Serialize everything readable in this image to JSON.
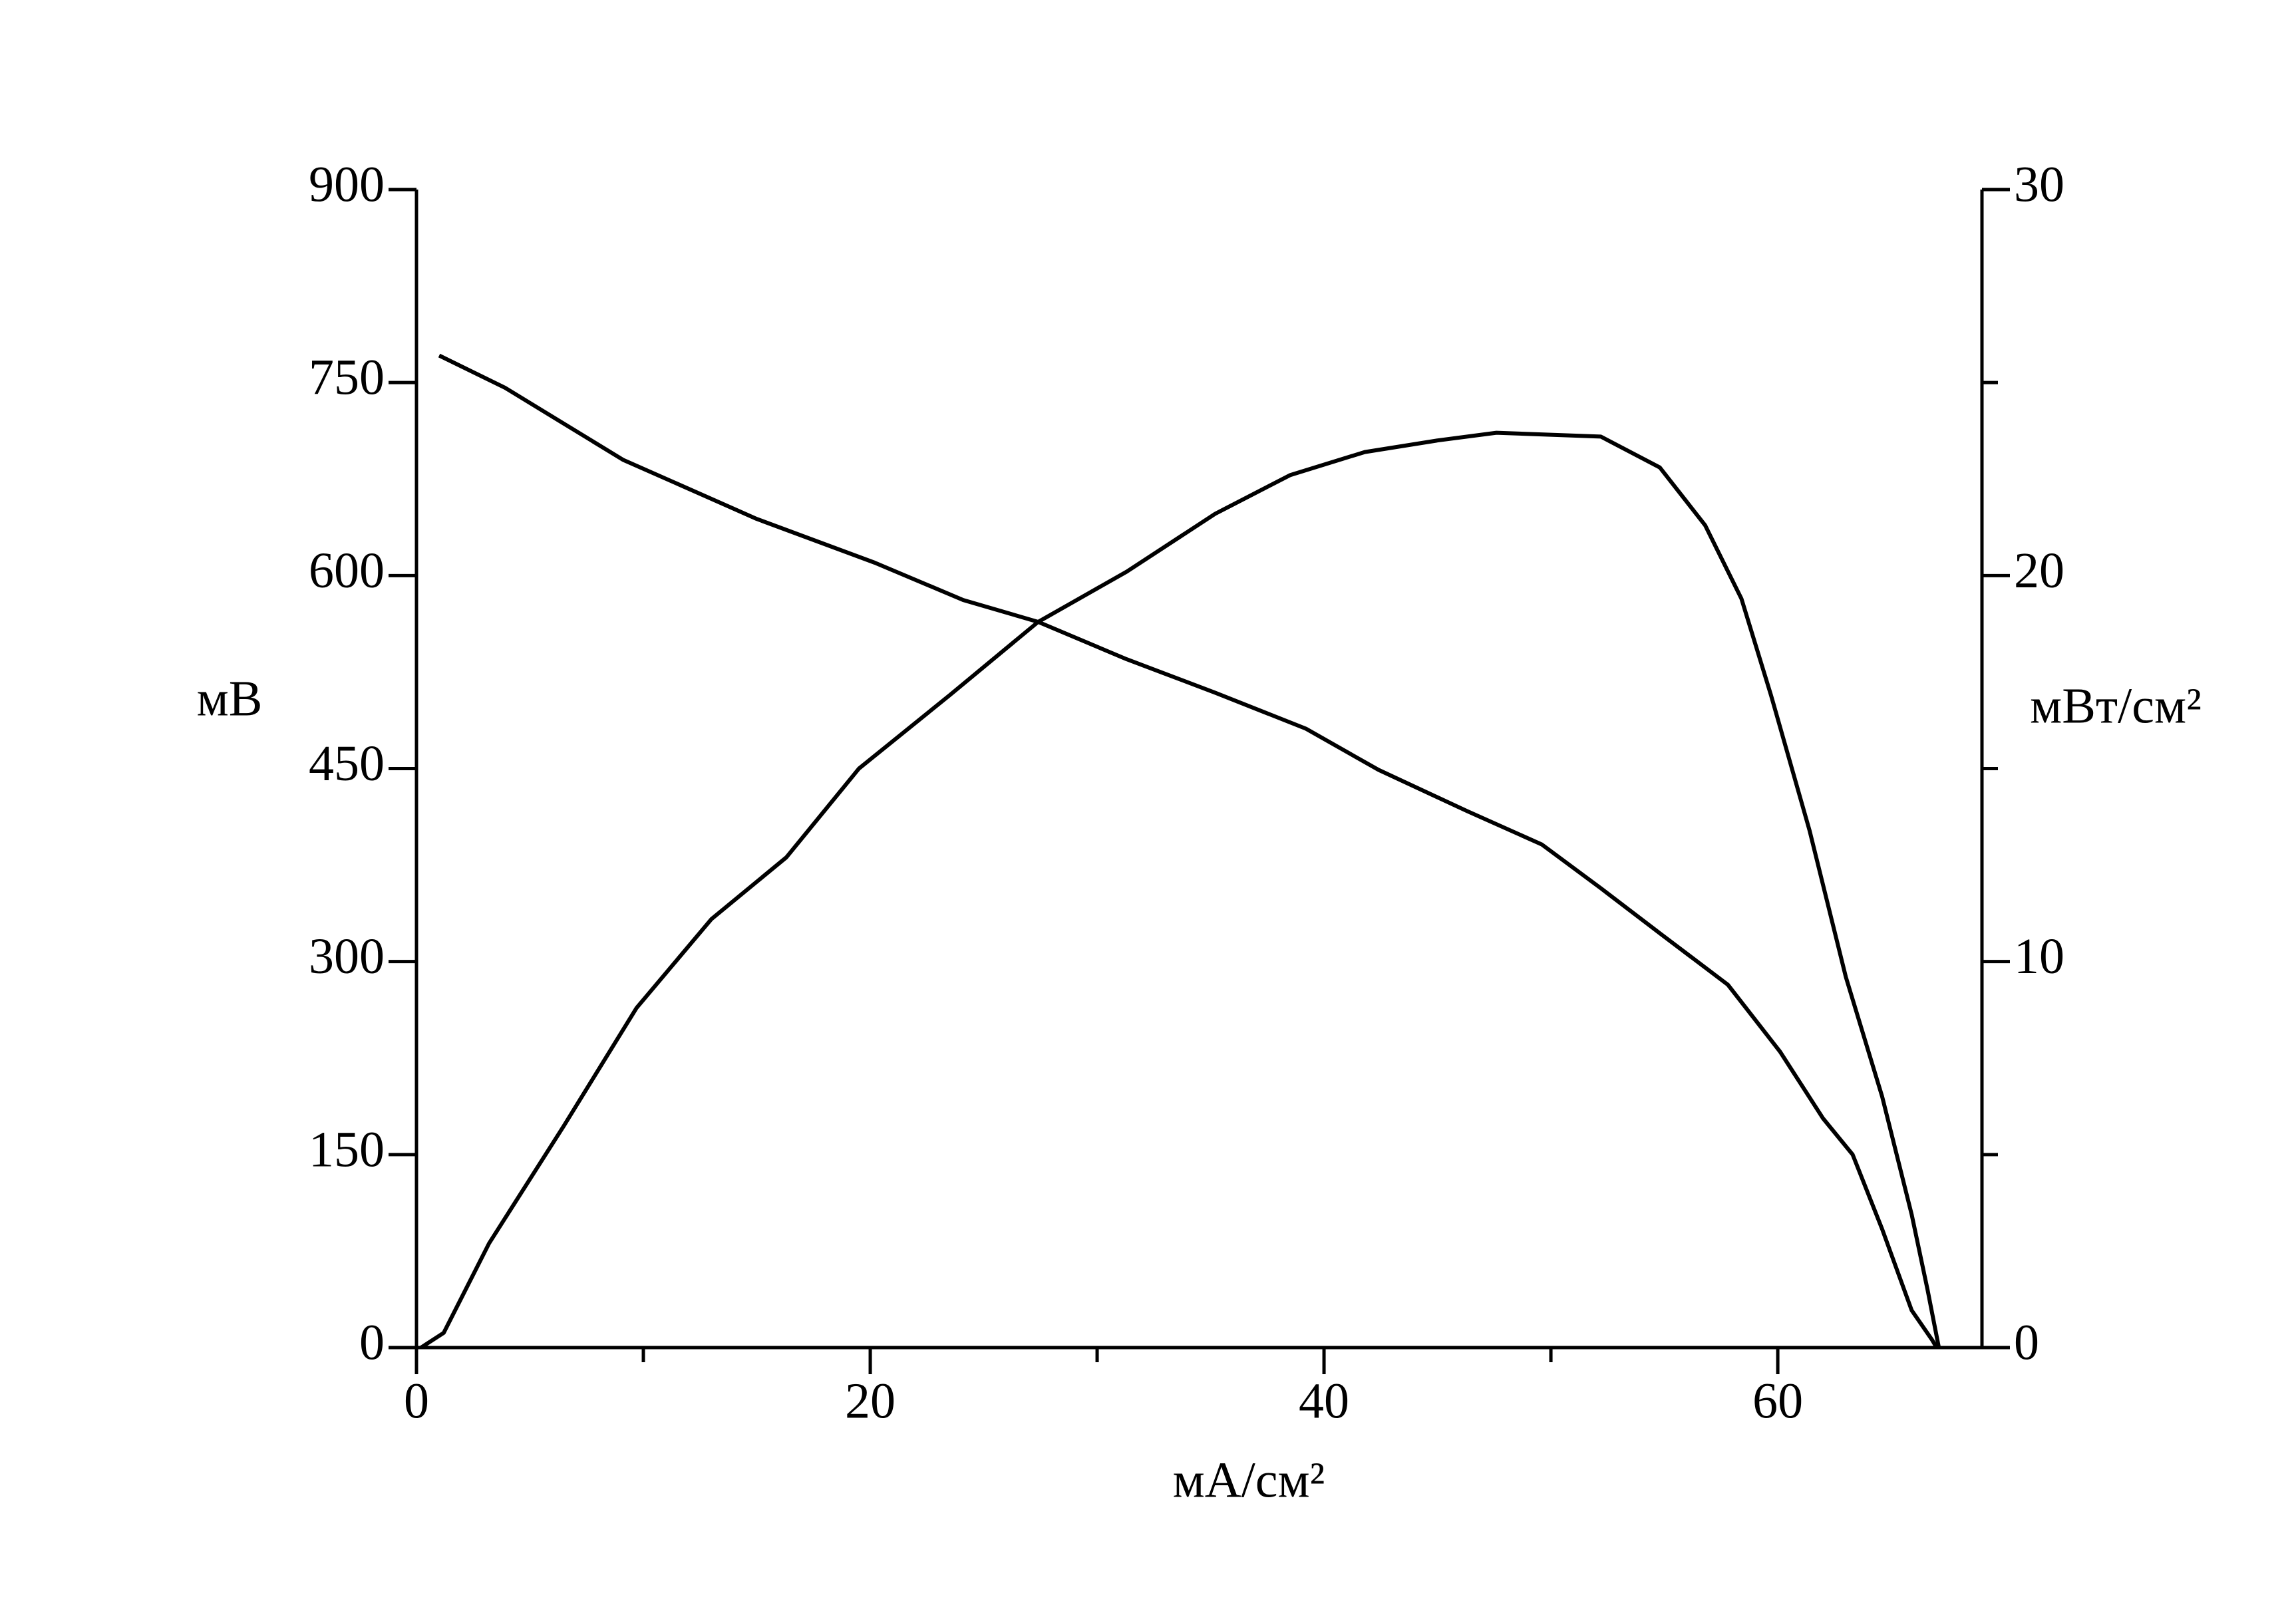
{
  "chart_data": {
    "type": "line",
    "x_label": "мА/см²",
    "y_label": "мВ",
    "y2_label": "мВт/см²",
    "xlim": [
      0,
      69
    ],
    "xticks": [
      0,
      20,
      40,
      60
    ],
    "x_minor_ticks": [
      10,
      30,
      50
    ],
    "ylim": [
      0,
      900
    ],
    "yticks": [
      0,
      150,
      300,
      450,
      600,
      750,
      900
    ],
    "y2lim": [
      0,
      30
    ],
    "y2ticks": [
      0,
      10,
      20,
      30
    ],
    "y2_minor_ticks": [
      5,
      15,
      25
    ],
    "grid": false,
    "series": [
      {
        "name": "мВ",
        "color": "#000000",
        "x": [
          1,
          3.9,
          9.1,
          15,
          20.2,
          24.1,
          27.4,
          31.3,
          35.2,
          39.2,
          42.4,
          46.3,
          49.6,
          52.2,
          54.8,
          57.8,
          60.1,
          62,
          63.3,
          64.6,
          65.9,
          66.8,
          67
        ],
        "values": [
          771,
          746,
          690,
          644,
          610,
          581,
          564,
          535,
          509,
          481,
          449,
          417,
          391,
          357,
          322,
          282,
          230,
          178,
          150,
          92,
          29,
          6,
          0
        ]
      },
      {
        "name": "мВт/см²",
        "color": "#000000",
        "axis": "y2",
        "x": [
          0.2,
          1.2,
          3.2,
          6.5,
          9.7,
          13,
          16.3,
          19.5,
          23.5,
          27.4,
          31.3,
          35.2,
          38.5,
          41.8,
          45,
          47.6,
          52.2,
          54.8,
          56.8,
          58.4,
          59.7,
          61.4,
          63,
          64.6,
          65.9,
          66.6,
          67.1
        ],
        "values": [
          0,
          0.38,
          2.7,
          5.75,
          8.8,
          11.1,
          12.7,
          15.0,
          16.9,
          18.8,
          20.1,
          21.6,
          22.6,
          23.2,
          23.5,
          23.7,
          23.6,
          22.8,
          21.3,
          19.4,
          16.9,
          13.4,
          9.6,
          6.5,
          3.45,
          1.5,
          0
        ]
      }
    ]
  }
}
